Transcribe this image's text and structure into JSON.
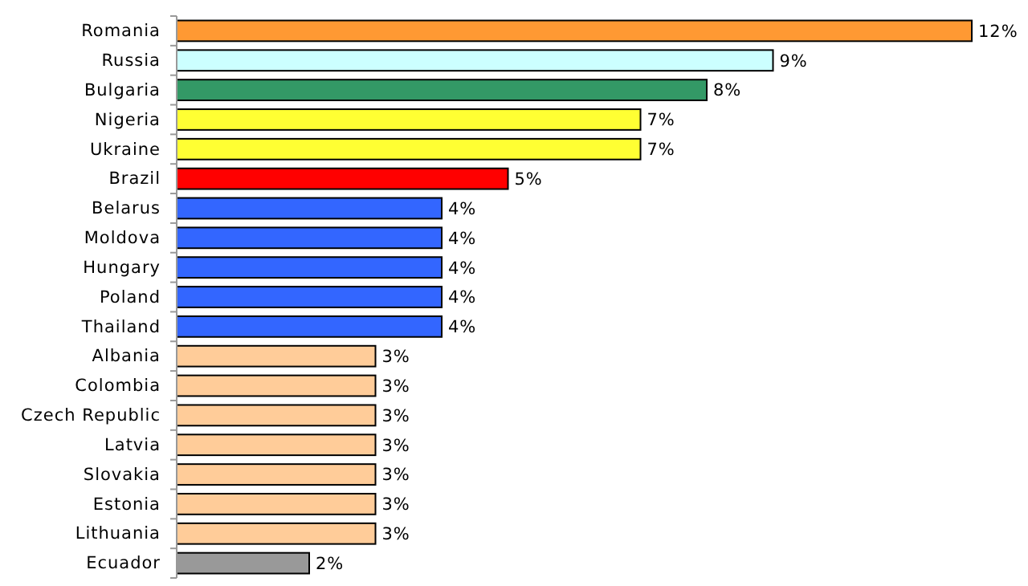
{
  "chart_data": {
    "type": "bar",
    "orientation": "horizontal",
    "relative": false,
    "categories": [
      "Romania",
      "Russia",
      "Bulgaria",
      "Nigeria",
      "Ukraine",
      "Brazil",
      "Belarus",
      "Moldova",
      "Hungary",
      "Poland",
      "Thailand",
      "Albania",
      "Colombia",
      "Czech Republic",
      "Latvia",
      "Slovakia",
      "Estonia",
      "Lithuania",
      "Ecuador"
    ],
    "values": [
      12,
      9,
      8,
      7,
      7,
      5,
      4,
      4,
      4,
      4,
      4,
      3,
      3,
      3,
      3,
      3,
      3,
      3,
      2
    ],
    "value_labels": [
      "12%",
      "9%",
      "8%",
      "7%",
      "7%",
      "5%",
      "4%",
      "4%",
      "4%",
      "4%",
      "4%",
      "3%",
      "3%",
      "3%",
      "3%",
      "3%",
      "3%",
      "3%",
      "2%"
    ],
    "colors": [
      "#ff9933",
      "#ccffff",
      "#339966",
      "#ffff33",
      "#ffff33",
      "#ff0000",
      "#3366ff",
      "#3366ff",
      "#3366ff",
      "#3366ff",
      "#3366ff",
      "#ffcc99",
      "#ffcc99",
      "#ffcc99",
      "#ffcc99",
      "#ffcc99",
      "#ffcc99",
      "#ffcc99",
      "#999999"
    ]
  }
}
